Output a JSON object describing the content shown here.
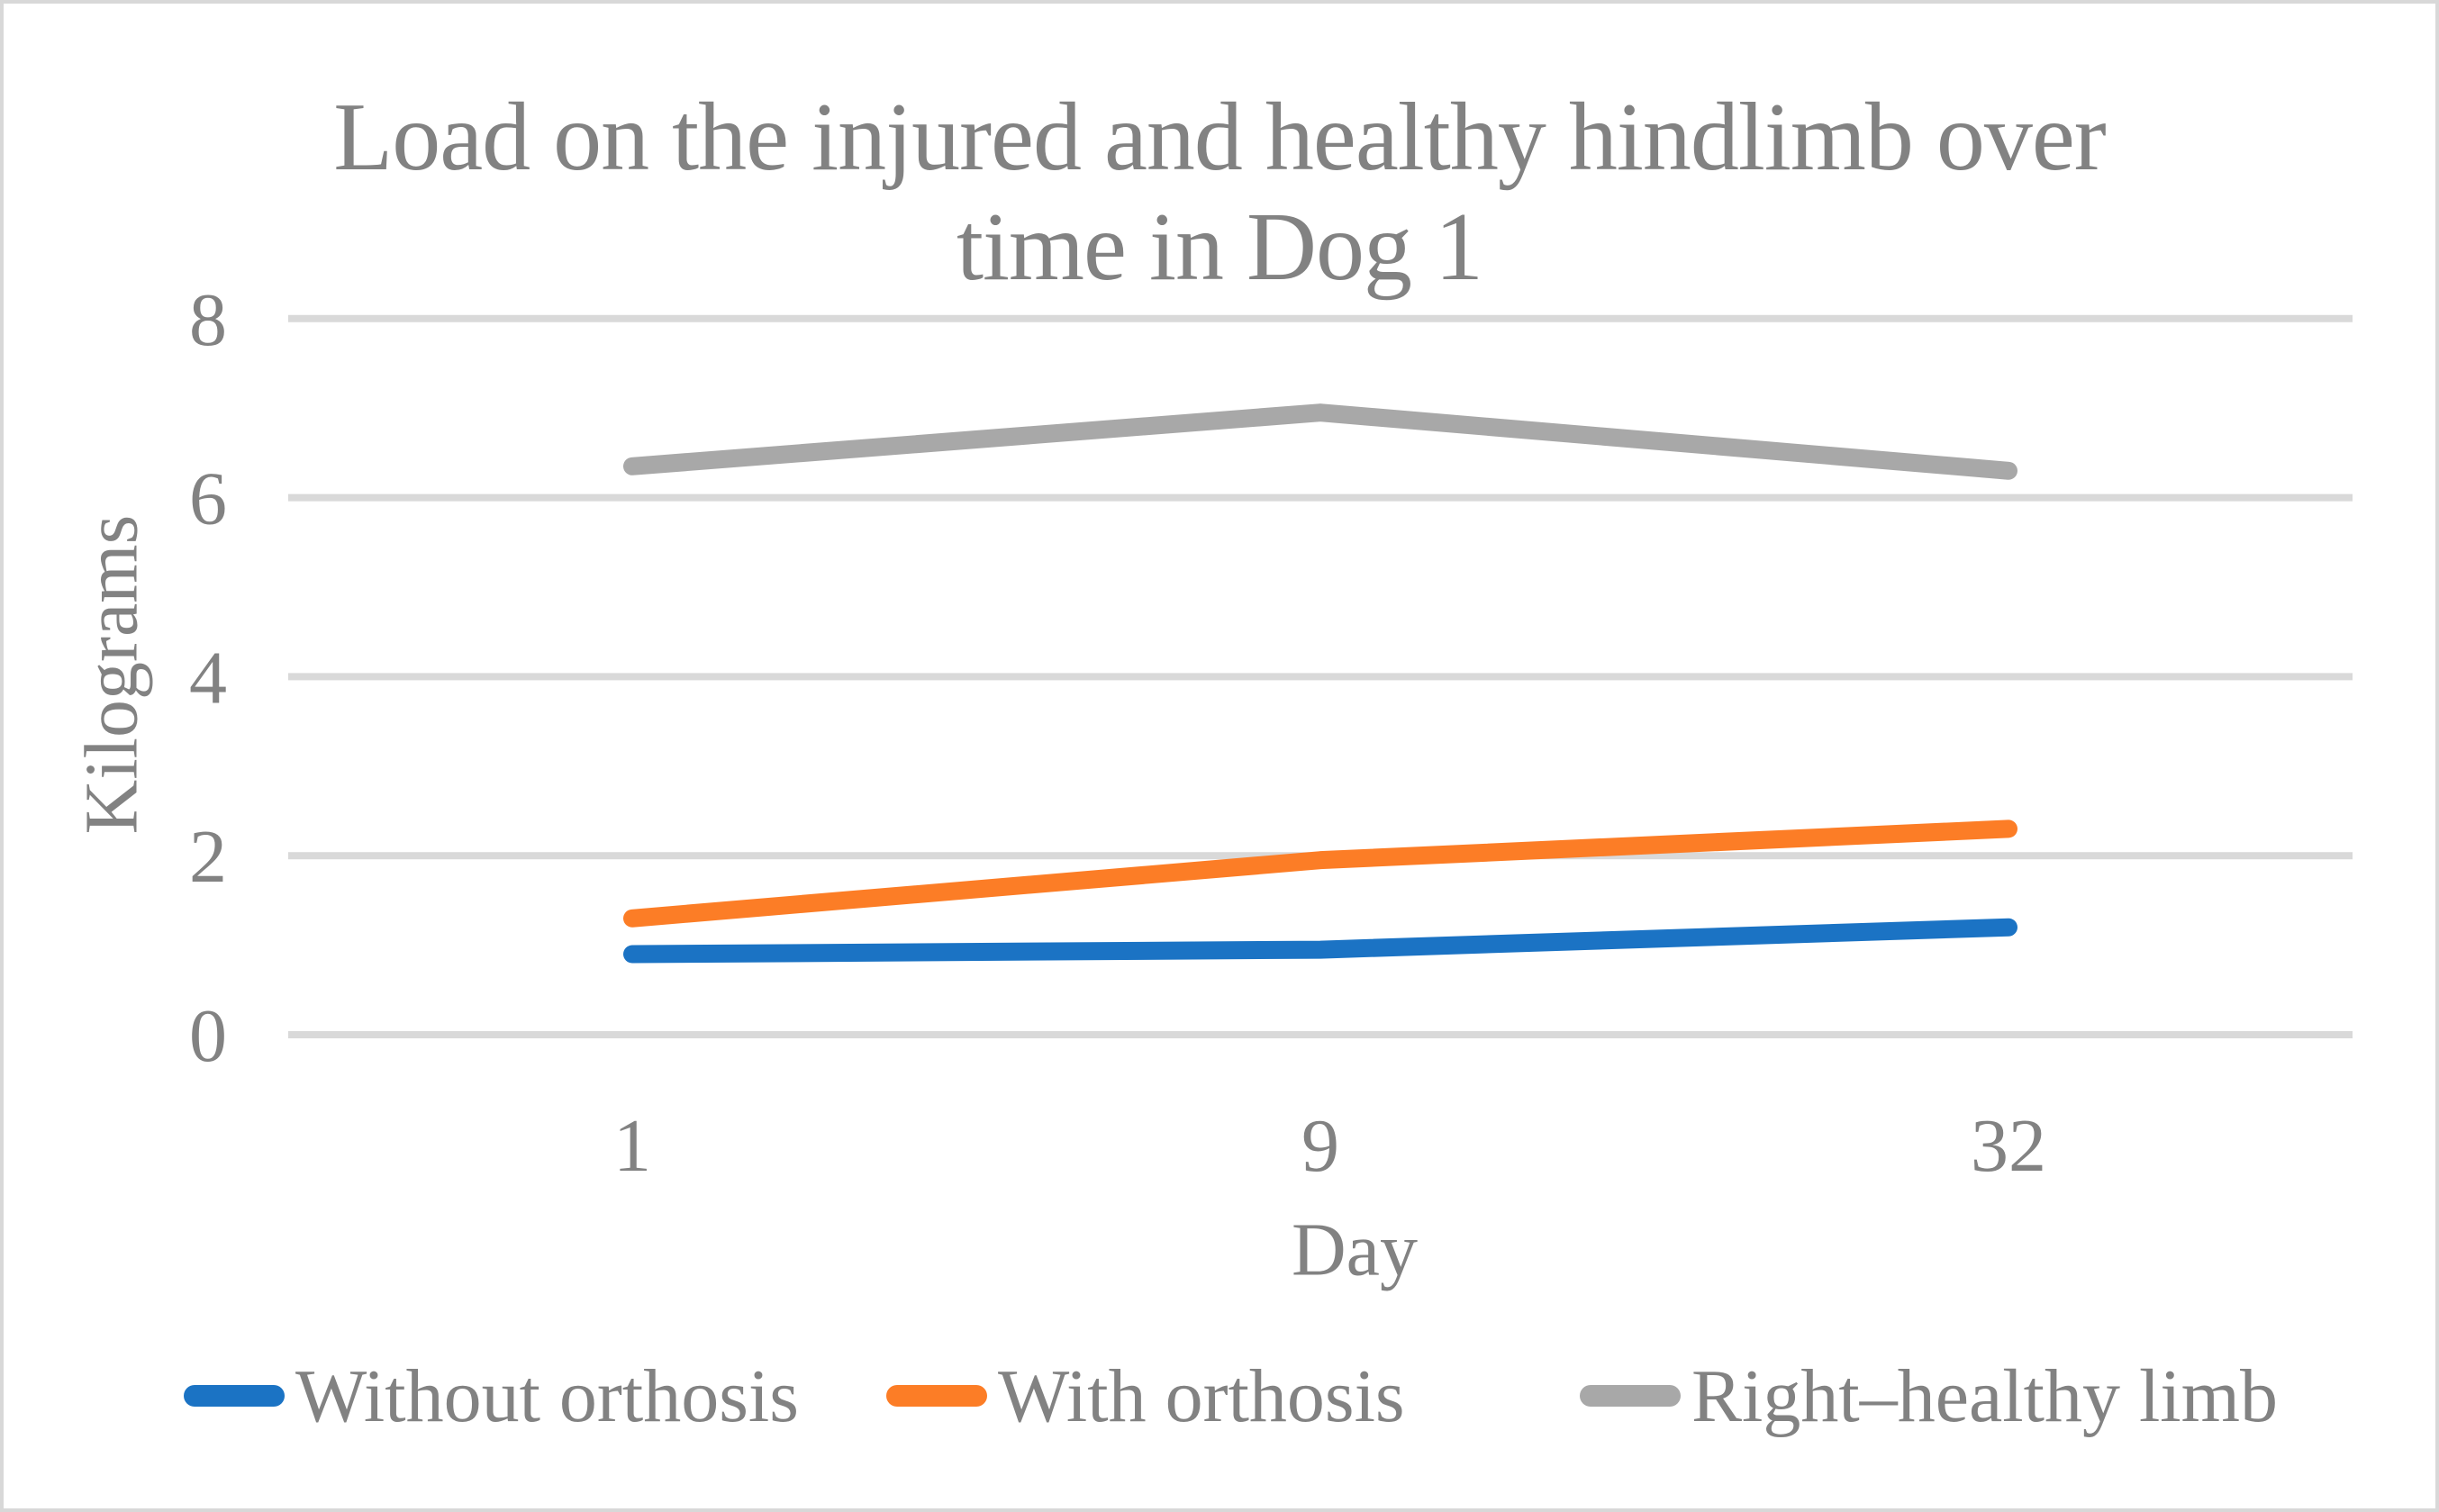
{
  "frame": {
    "background": "#FFFFFF",
    "border_color": "#D8D8D8"
  },
  "chart_data": {
    "type": "line",
    "title": "Load on the injured and healthy hindlimb over time in Dog 1",
    "title_lines": [
      "Load on the injured and healthy hindlimb over",
      "time in Dog 1"
    ],
    "xlabel": "Day",
    "ylabel": "Kilograms",
    "categories": [
      "1",
      "9",
      "32"
    ],
    "series": [
      {
        "name": "Without orthosis",
        "color": "#1B73C4",
        "values": [
          0.9,
          0.95,
          1.2
        ]
      },
      {
        "name": "With orthosis",
        "color": "#FC7D26",
        "values": [
          1.3,
          1.95,
          2.3
        ]
      },
      {
        "name": "Right–healthy limb",
        "color": "#A8A8A8",
        "values": [
          6.35,
          6.95,
          6.3
        ]
      }
    ],
    "ylim": [
      0,
      8
    ],
    "yticks": [
      0,
      2,
      4,
      6,
      8
    ],
    "grid": true,
    "gridline_color": "#D9D9D9",
    "text_color": "#828282",
    "line_width": 20,
    "legend_position": "bottom"
  }
}
